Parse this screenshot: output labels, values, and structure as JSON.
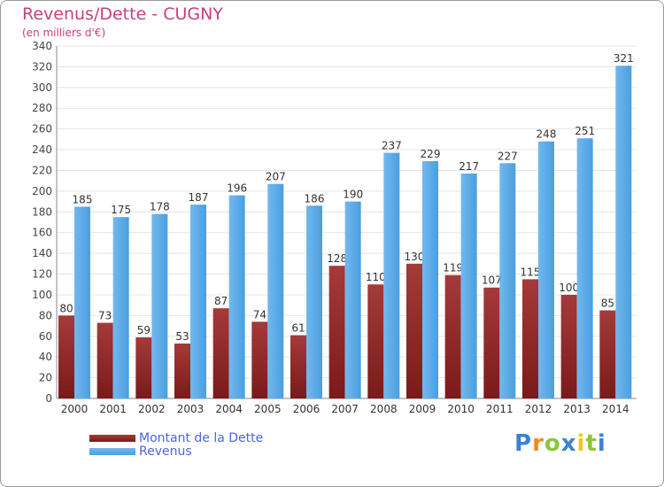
{
  "chart_data": {
    "type": "bar",
    "title": "Revenus/Dette - CUGNY",
    "subtitle": "(en milliers d'€)",
    "xlabel": "",
    "ylabel": "",
    "ylim": [
      0,
      340
    ],
    "ytick_step": 20,
    "grid": true,
    "legend_position": "bottom-left",
    "categories": [
      "2000",
      "2001",
      "2002",
      "2003",
      "2004",
      "2005",
      "2006",
      "2007",
      "2008",
      "2009",
      "2010",
      "2011",
      "2012",
      "2013",
      "2014"
    ],
    "series": [
      {
        "name": "Montant de la Dette",
        "values": [
          80,
          73,
          59,
          53,
          87,
          74,
          61,
          128,
          110,
          130,
          119,
          107,
          115,
          100,
          85
        ]
      },
      {
        "name": "Revenus",
        "values": [
          185,
          175,
          178,
          187,
          196,
          207,
          186,
          190,
          237,
          229,
          217,
          227,
          248,
          251,
          321
        ]
      }
    ]
  },
  "colors": {
    "debt": "#7a1a1a",
    "debt_light": "#a53a3a",
    "revenue": "#4a9fe0",
    "revenue_light": "#72b8ee",
    "title": "#c8407a",
    "legend_text": "#4a64e8"
  },
  "logo": {
    "letters": [
      "P",
      "r",
      "o",
      "x",
      "i",
      "t",
      "i"
    ],
    "colors": [
      "#3b82d6",
      "#f28a1e",
      "#8cc63f",
      "#3b82d6",
      "#f2c81e",
      "#8cc63f",
      "#3b82d6"
    ]
  }
}
